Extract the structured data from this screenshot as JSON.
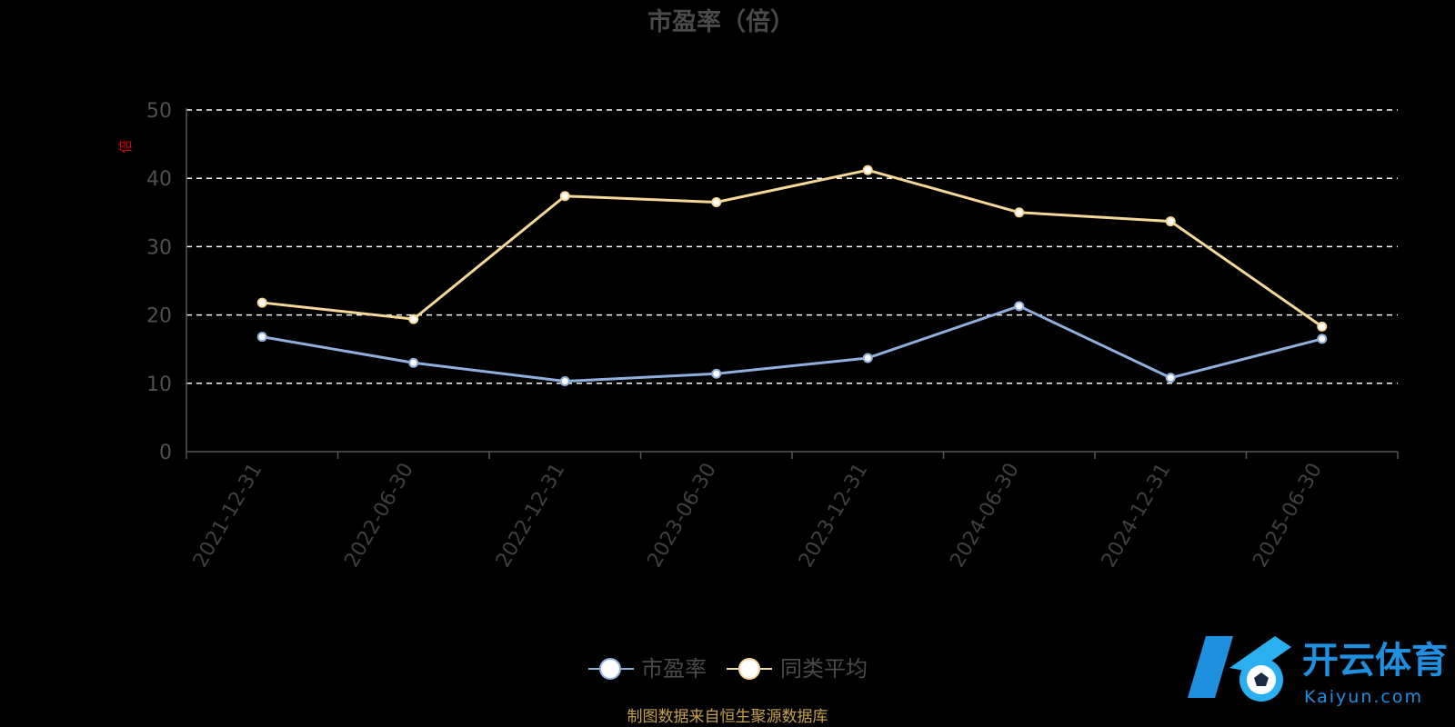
{
  "chart_data": {
    "type": "line",
    "title": "市盈率（倍）",
    "ylabel": "倍",
    "ylim": [
      0,
      50
    ],
    "yticks": [
      0,
      10,
      20,
      30,
      40,
      50
    ],
    "grid": true,
    "categories": [
      "2021-12-31",
      "2022-06-30",
      "2022-12-31",
      "2023-06-30",
      "2023-12-31",
      "2024-06-30",
      "2024-12-31",
      "2025-06-30"
    ],
    "series": [
      {
        "name": "市盈率",
        "color": "#8fb0dc",
        "values": [
          16.8,
          13.0,
          10.3,
          11.4,
          13.7,
          21.3,
          10.8,
          16.5
        ]
      },
      {
        "name": "同类平均",
        "color": "#f5d898",
        "values": [
          21.8,
          19.4,
          37.4,
          36.5,
          41.2,
          35.0,
          33.7,
          18.3
        ]
      }
    ],
    "legend_position": "bottom"
  },
  "footer": {
    "source": "制图数据来自恒生聚源数据库"
  },
  "logo": {
    "name": "开云体育",
    "url_text": "Kaiyun.com",
    "icon": "k-soccer-ball-logo-icon"
  }
}
